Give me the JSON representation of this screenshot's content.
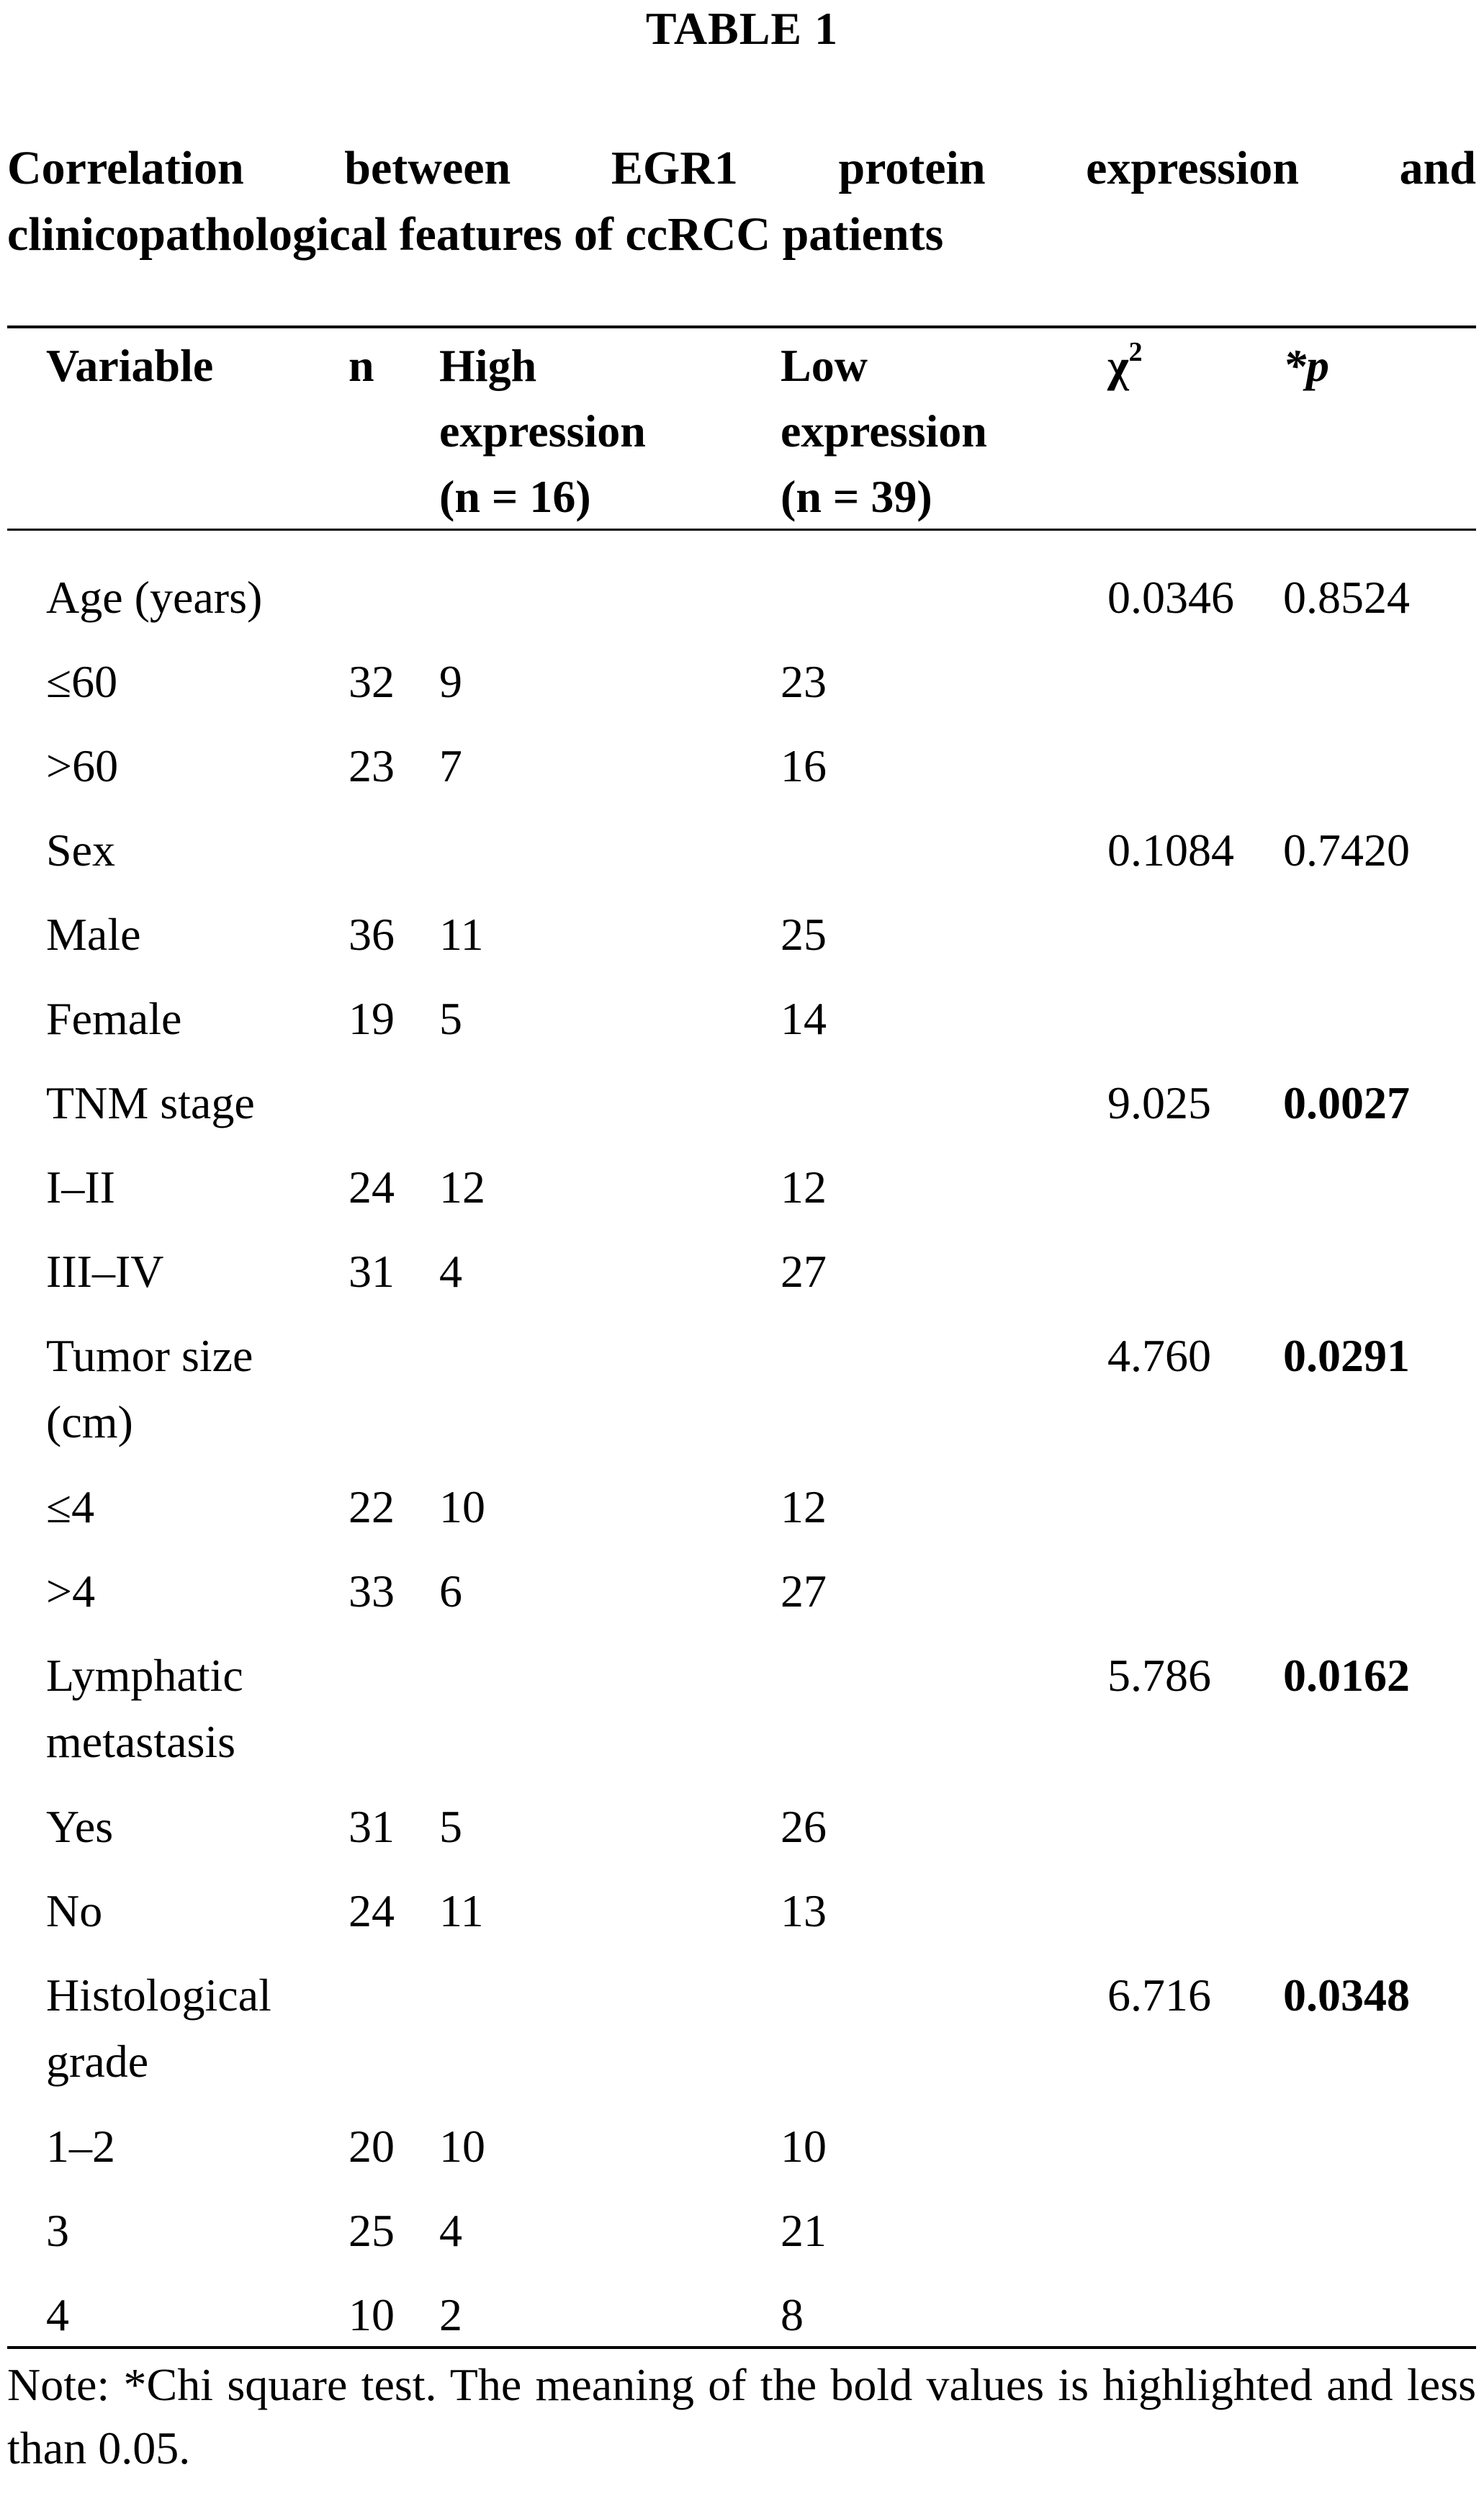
{
  "table_label": "TABLE 1",
  "caption": {
    "line1": "Correlation between EGR1 protein expression and",
    "line2": "clinicopathological features of ccRCC patients"
  },
  "header": {
    "variable": "Variable",
    "n": "n",
    "high_l1": "High",
    "high_l2": "expression",
    "high_l3": "(n = 16)",
    "low_l1": "Low",
    "low_l2": "expression",
    "low_l3": "(n = 39)",
    "chi": "χ",
    "chi_sup": "2",
    "p": "*p"
  },
  "rows": [
    {
      "variable": "Age (years)",
      "n": "",
      "high": "",
      "low": "",
      "chi": "0.0346",
      "p": "0.8524",
      "p_bold": false
    },
    {
      "variable": "≤60",
      "n": "32",
      "high": "9",
      "low": "23",
      "chi": "",
      "p": "",
      "p_bold": false
    },
    {
      "variable": ">60",
      "n": "23",
      "high": "7",
      "low": "16",
      "chi": "",
      "p": "",
      "p_bold": false
    },
    {
      "variable": "Sex",
      "n": "",
      "high": "",
      "low": "",
      "chi": "0.1084",
      "p": "0.7420",
      "p_bold": false
    },
    {
      "variable": "Male",
      "n": "36",
      "high": "11",
      "low": "25",
      "chi": "",
      "p": "",
      "p_bold": false
    },
    {
      "variable": "Female",
      "n": "19",
      "high": "5",
      "low": "14",
      "chi": "",
      "p": "",
      "p_bold": false
    },
    {
      "variable": "TNM stage",
      "n": "",
      "high": "",
      "low": "",
      "chi": "9.025",
      "p": "0.0027",
      "p_bold": true
    },
    {
      "variable": "I–II",
      "n": "24",
      "high": "12",
      "low": "12",
      "chi": "",
      "p": "",
      "p_bold": false
    },
    {
      "variable": "III–IV",
      "n": "31",
      "high": "4",
      "low": "27",
      "chi": "",
      "p": "",
      "p_bold": false
    },
    {
      "variable": "Tumor size (cm)",
      "n": "",
      "high": "",
      "low": "",
      "chi": "4.760",
      "p": "0.0291",
      "p_bold": true
    },
    {
      "variable": "≤4",
      "n": "22",
      "high": "10",
      "low": "12",
      "chi": "",
      "p": "",
      "p_bold": false
    },
    {
      "variable": ">4",
      "n": "33",
      "high": "6",
      "low": "27",
      "chi": "",
      "p": "",
      "p_bold": false
    },
    {
      "variable": "Lymphatic metastasis",
      "n": "",
      "high": "",
      "low": "",
      "chi": "5.786",
      "p": "0.0162",
      "p_bold": true
    },
    {
      "variable": "Yes",
      "n": "31",
      "high": "5",
      "low": "26",
      "chi": "",
      "p": "",
      "p_bold": false
    },
    {
      "variable": "No",
      "n": "24",
      "high": "11",
      "low": "13",
      "chi": "",
      "p": "",
      "p_bold": false
    },
    {
      "variable": "Histological grade",
      "n": "",
      "high": "",
      "low": "",
      "chi": "6.716",
      "p": "0.0348",
      "p_bold": true
    },
    {
      "variable": "1–2",
      "n": "20",
      "high": "10",
      "low": "10",
      "chi": "",
      "p": "",
      "p_bold": false
    },
    {
      "variable": "3",
      "n": "25",
      "high": "4",
      "low": "21",
      "chi": "",
      "p": "",
      "p_bold": false
    },
    {
      "variable": "4",
      "n": "10",
      "high": "2",
      "low": "8",
      "chi": "",
      "p": "",
      "p_bold": false
    }
  ],
  "note": "Note: *Chi square test. The meaning of the bold values is highlighted and less than 0.05."
}
